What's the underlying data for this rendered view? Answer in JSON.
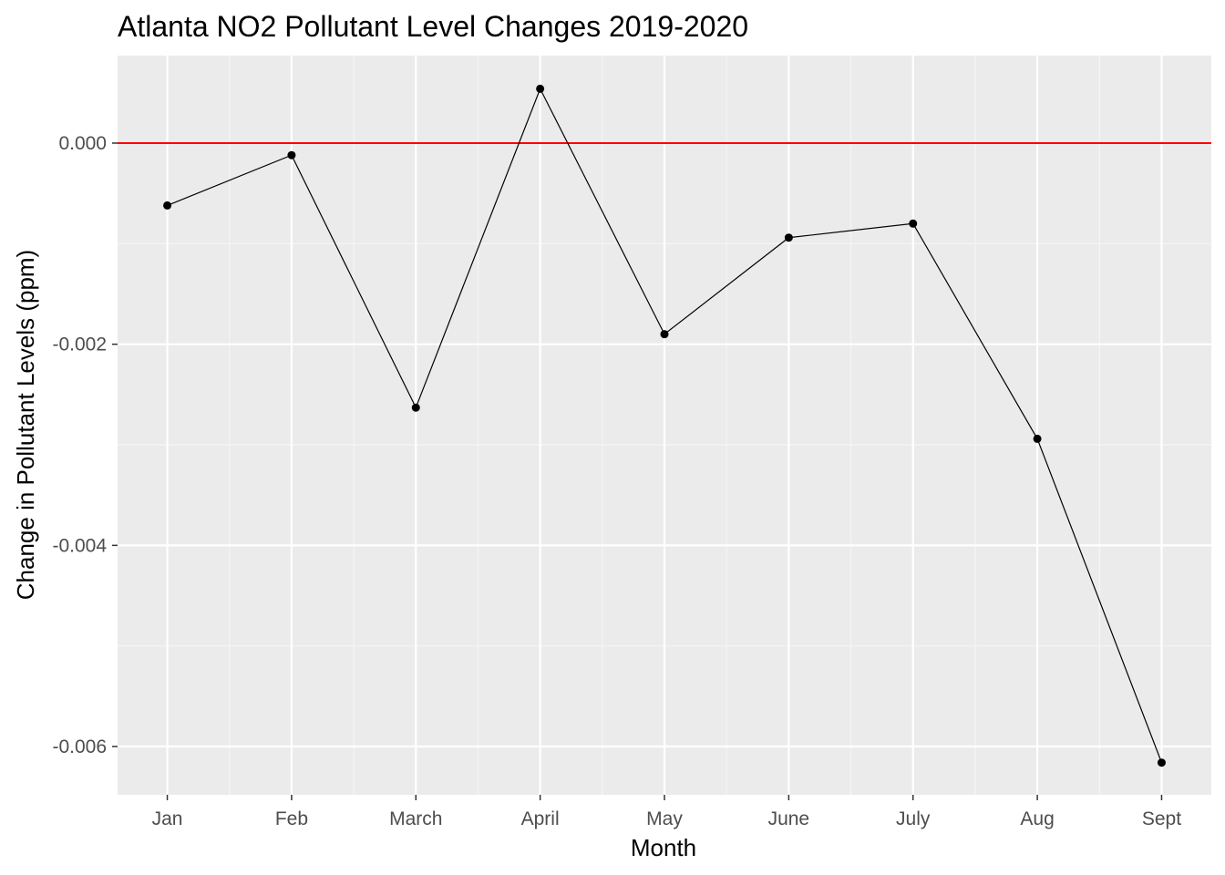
{
  "chart_data": {
    "type": "line",
    "title": "Atlanta NO2 Pollutant Level Changes 2019-2020",
    "xlabel": "Month",
    "ylabel": "Change in Pollutant Levels (ppm)",
    "categories": [
      "Jan",
      "Feb",
      "March",
      "April",
      "May",
      "June",
      "July",
      "Aug",
      "Sept"
    ],
    "series": [
      {
        "values": [
          -0.00062,
          -0.00012,
          -0.00263,
          0.00054,
          -0.0019,
          -0.00094,
          -0.0008,
          -0.00294,
          -0.00616
        ]
      }
    ],
    "yticks": [
      0.0,
      -0.002,
      -0.004,
      -0.006
    ],
    "ytick_labels": [
      "0.000",
      "-0.002",
      "-0.004",
      "-0.006"
    ],
    "ylim": [
      -0.00648,
      0.00087
    ],
    "reference_line": {
      "y": 0.0,
      "color": "#ff0000"
    },
    "grid": true,
    "colors": {
      "panel_background": "#ebebeb",
      "grid_major": "#ffffff",
      "grid_minor": "#f5f5f5",
      "line": "#000000",
      "point": "#000000"
    }
  }
}
